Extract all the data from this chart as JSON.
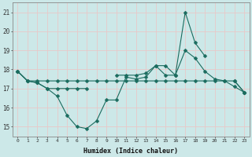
{
  "xlabel": "Humidex (Indice chaleur)",
  "x_values": [
    0,
    1,
    2,
    3,
    4,
    5,
    6,
    7,
    8,
    9,
    10,
    11,
    12,
    13,
    14,
    15,
    16,
    17,
    18,
    19,
    20,
    21,
    22,
    23
  ],
  "line1": [
    17.9,
    17.4,
    17.3,
    17.0,
    16.6,
    15.6,
    15.0,
    14.9,
    15.3,
    16.4,
    16.4,
    17.6,
    17.5,
    17.6,
    18.2,
    17.7,
    17.7,
    19.0,
    18.6,
    17.9,
    17.5,
    17.4,
    17.1,
    16.8
  ],
  "line2_segs": [
    [
      [
        0,
        17.9
      ],
      [
        1,
        17.4
      ],
      [
        2,
        17.3
      ],
      [
        3,
        17.0
      ],
      [
        4,
        17.0
      ],
      [
        5,
        17.0
      ],
      [
        6,
        17.0
      ],
      [
        7,
        17.0
      ]
    ],
    [
      [
        10,
        17.7
      ],
      [
        11,
        17.7
      ],
      [
        12,
        17.7
      ],
      [
        13,
        17.8
      ],
      [
        14,
        18.2
      ],
      [
        15,
        18.2
      ],
      [
        16,
        17.7
      ],
      [
        17,
        21.0
      ],
      [
        18,
        19.4
      ],
      [
        19,
        18.7
      ]
    ],
    [
      [
        22,
        17.4
      ],
      [
        23,
        16.8
      ]
    ]
  ],
  "line3": [
    17.9,
    17.4,
    17.4,
    17.4,
    17.4,
    17.4,
    17.4,
    17.4,
    17.4,
    17.4,
    17.4,
    17.4,
    17.4,
    17.4,
    17.4,
    17.4,
    17.4,
    17.4,
    17.4,
    17.4,
    17.4,
    17.4,
    17.4,
    16.8
  ],
  "bg_color": "#cce8e8",
  "line_color": "#1a6b5e",
  "grid_color": "#e8c8c8",
  "ylim": [
    14.5,
    21.5
  ],
  "xlim": [
    -0.5,
    23.5
  ],
  "yticks": [
    15,
    16,
    17,
    18,
    19,
    20,
    21
  ]
}
